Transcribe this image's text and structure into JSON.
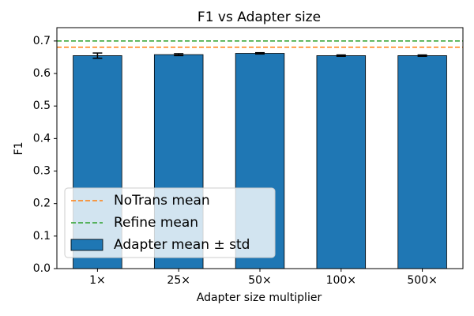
{
  "chart_data": {
    "type": "bar",
    "title": "F1 vs Adapter size",
    "x_label": "Adapter size multiplier",
    "y_label": "F1",
    "categories": [
      "1×",
      "25×",
      "50×",
      "100×",
      "500×"
    ],
    "series": [
      {
        "name": "Adapter mean ± std",
        "color": "#1f77b4",
        "values": [
          0.655,
          0.658,
          0.662,
          0.655,
          0.655
        ],
        "errors": [
          0.008,
          0.003,
          0.002,
          0.002,
          0.002
        ]
      }
    ],
    "reference_lines": [
      {
        "name": "NoTrans mean",
        "value": 0.681,
        "color": "#ff7f0e"
      },
      {
        "name": "Refine mean",
        "value": 0.7,
        "color": "#2ca02c"
      }
    ],
    "ylim": [
      0,
      0.741
    ],
    "yticks": [
      {
        "value": 0,
        "label": "0.0"
      },
      0.1,
      0.2,
      0.3,
      0.4,
      0.5,
      0.6,
      0.7
    ],
    "legend": "lower left"
  }
}
